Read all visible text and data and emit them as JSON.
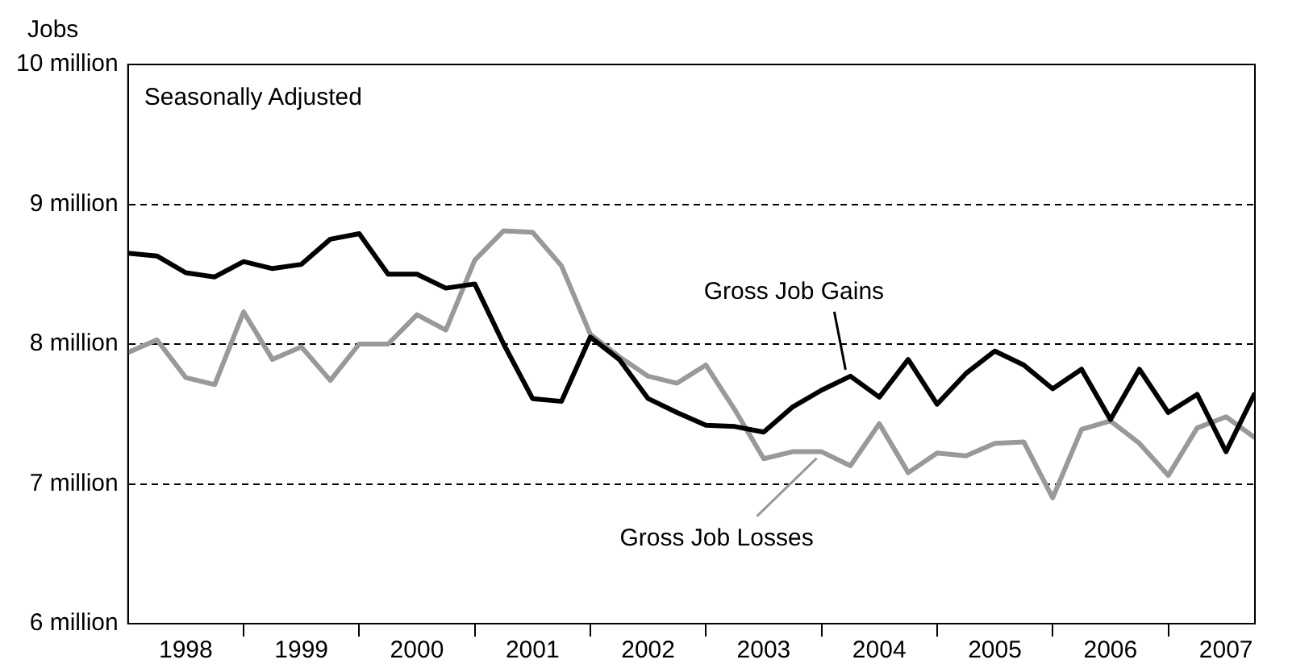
{
  "chart_data": {
    "type": "line",
    "ylabel": "Jobs",
    "annotations": [
      "Seasonally Adjusted"
    ],
    "x": [
      "1998-01",
      "1998-04",
      "1998-07",
      "1998-10",
      "1999-01",
      "1999-04",
      "1999-07",
      "1999-10",
      "2000-01",
      "2000-04",
      "2000-07",
      "2000-10",
      "2001-01",
      "2001-04",
      "2001-07",
      "2001-10",
      "2002-01",
      "2002-04",
      "2002-07",
      "2002-10",
      "2003-01",
      "2003-04",
      "2003-07",
      "2003-10",
      "2004-01",
      "2004-04",
      "2004-07",
      "2004-10",
      "2005-01",
      "2005-04",
      "2005-07",
      "2005-10",
      "2006-01",
      "2006-04",
      "2006-07",
      "2006-10",
      "2007-01",
      "2007-04",
      "2007-07",
      "2007-10"
    ],
    "series": [
      {
        "name": "Gross Job Gains",
        "color": "#000000",
        "values": [
          8.65,
          8.63,
          8.51,
          8.48,
          8.59,
          8.54,
          8.57,
          8.75,
          8.79,
          8.5,
          8.5,
          8.4,
          8.43,
          8.0,
          7.61,
          7.59,
          8.05,
          7.89,
          7.61,
          7.51,
          7.42,
          7.41,
          7.37,
          7.55,
          7.67,
          7.77,
          7.62,
          7.89,
          7.57,
          7.79,
          7.95,
          7.85,
          7.68,
          7.82,
          7.46,
          7.82,
          7.51,
          7.64,
          7.23,
          7.65
        ]
      },
      {
        "name": "Gross Job Losses",
        "color": "#999999",
        "values": [
          7.94,
          8.03,
          7.76,
          7.71,
          8.23,
          7.89,
          7.98,
          7.74,
          8.0,
          8.0,
          8.21,
          8.1,
          8.6,
          8.81,
          8.8,
          8.56,
          8.07,
          7.91,
          7.77,
          7.72,
          7.85,
          7.53,
          7.18,
          7.23,
          7.23,
          7.13,
          7.43,
          7.08,
          7.22,
          7.2,
          7.29,
          7.3,
          6.9,
          7.39,
          7.45,
          7.29,
          7.06,
          7.4,
          7.48,
          7.33
        ]
      }
    ],
    "xlim": [
      "1998-01",
      "2007-10"
    ],
    "xticks": [
      {
        "value": "1998-07",
        "label": "1998"
      },
      {
        "value": "1999-01",
        "label": null
      },
      {
        "value": "1999-07",
        "label": "1999"
      },
      {
        "value": "2000-01",
        "label": null
      },
      {
        "value": "2000-07",
        "label": "2000"
      },
      {
        "value": "2001-01",
        "label": null
      },
      {
        "value": "2001-07",
        "label": "2001"
      },
      {
        "value": "2002-01",
        "label": null
      },
      {
        "value": "2002-07",
        "label": "2002"
      },
      {
        "value": "2003-01",
        "label": null
      },
      {
        "value": "2003-07",
        "label": "2003"
      },
      {
        "value": "2004-01",
        "label": null
      },
      {
        "value": "2004-07",
        "label": "2004"
      },
      {
        "value": "2005-01",
        "label": null
      },
      {
        "value": "2005-07",
        "label": "2005"
      },
      {
        "value": "2006-01",
        "label": null
      },
      {
        "value": "2006-07",
        "label": "2006"
      },
      {
        "value": "2007-01",
        "label": null
      },
      {
        "value": "2007-07",
        "label": "2007"
      }
    ],
    "ylim": [
      6,
      10
    ],
    "yticks": [
      {
        "value": 6,
        "label": "6 million"
      },
      {
        "value": 7,
        "label": "7 million"
      },
      {
        "value": 8,
        "label": "8 million"
      },
      {
        "value": 9,
        "label": "9 million"
      },
      {
        "value": 10,
        "label": "10 million"
      }
    ],
    "grid": "y",
    "line_style": "solid",
    "marker": "none"
  }
}
